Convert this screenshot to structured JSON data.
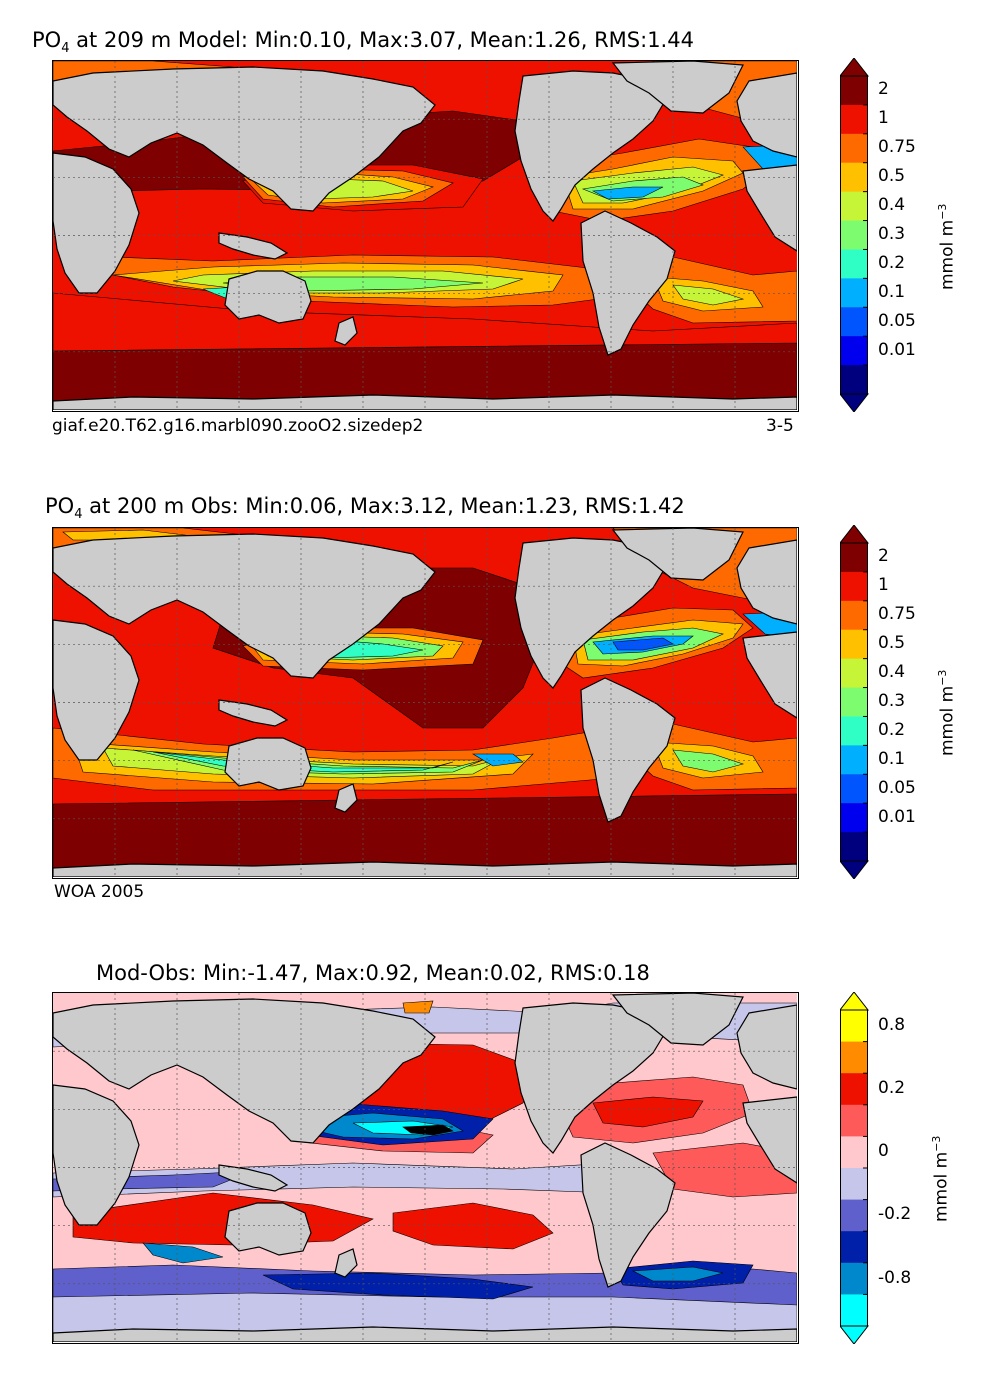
{
  "chart_data": [
    {
      "type": "heatmap",
      "title": {
        "variable": "PO",
        "subscript": "4",
        "rest": " at 209 m Model: Min:0.10, Max:3.07, Mean:1.26, RMS:1.44"
      },
      "stats": {
        "depth_m": 209,
        "source": "Model",
        "min": 0.1,
        "max": 3.07,
        "mean": 1.26,
        "rms": 1.44
      },
      "caption_left": "giaf.e20.T62.g16.marbl090.zooO2.sizedep2",
      "caption_right": "3-5",
      "colorbar": {
        "unit_base": "mmol m",
        "unit_exp": "−3",
        "levels": [
          "2",
          "1",
          "0.75",
          "0.5",
          "0.4",
          "0.3",
          "0.2",
          "0.1",
          "0.05",
          "0.01"
        ],
        "colors": [
          "#7f0000",
          "#ee1100",
          "#ff6a00",
          "#ffc000",
          "#c5f536",
          "#7cfc6e",
          "#2fffc4",
          "#00b0ff",
          "#0055ff",
          "#0000ee",
          "#00007f"
        ]
      }
    },
    {
      "type": "heatmap",
      "title": {
        "variable": "PO",
        "subscript": "4",
        "rest": " at 200 m Obs: Min:0.06, Max:3.12, Mean:1.23, RMS:1.42"
      },
      "stats": {
        "depth_m": 200,
        "source": "Obs",
        "min": 0.06,
        "max": 3.12,
        "mean": 1.23,
        "rms": 1.42
      },
      "caption_left": "WOA 2005",
      "caption_right": "",
      "colorbar": {
        "unit_base": "mmol m",
        "unit_exp": "−3",
        "levels": [
          "2",
          "1",
          "0.75",
          "0.5",
          "0.4",
          "0.3",
          "0.2",
          "0.1",
          "0.05",
          "0.01"
        ],
        "colors": [
          "#7f0000",
          "#ee1100",
          "#ff6a00",
          "#ffc000",
          "#c5f536",
          "#7cfc6e",
          "#2fffc4",
          "#00b0ff",
          "#0055ff",
          "#0000ee",
          "#00007f"
        ]
      }
    },
    {
      "type": "heatmap",
      "title": {
        "variable": "",
        "subscript": "",
        "rest": "Mod-Obs: Min:-1.47, Max:0.92, Mean:0.02, RMS:0.18"
      },
      "stats": {
        "source": "Mod-Obs",
        "min": -1.47,
        "max": 0.92,
        "mean": 0.02,
        "rms": 0.18
      },
      "caption_left": "",
      "caption_right": "",
      "colorbar": {
        "unit_base": "mmol m",
        "unit_exp": "−3",
        "levels": [
          "0.8",
          "",
          "0.2",
          "",
          "0",
          "",
          "-0.2",
          "",
          "-0.8",
          ""
        ],
        "colors": [
          "#ffff00",
          "#ff8c00",
          "#ee1100",
          "#ff5a5a",
          "#ffc8cc",
          "#c6c6ea",
          "#6060cc",
          "#0020aa",
          "#0088cc",
          "#00ffff"
        ]
      }
    }
  ]
}
